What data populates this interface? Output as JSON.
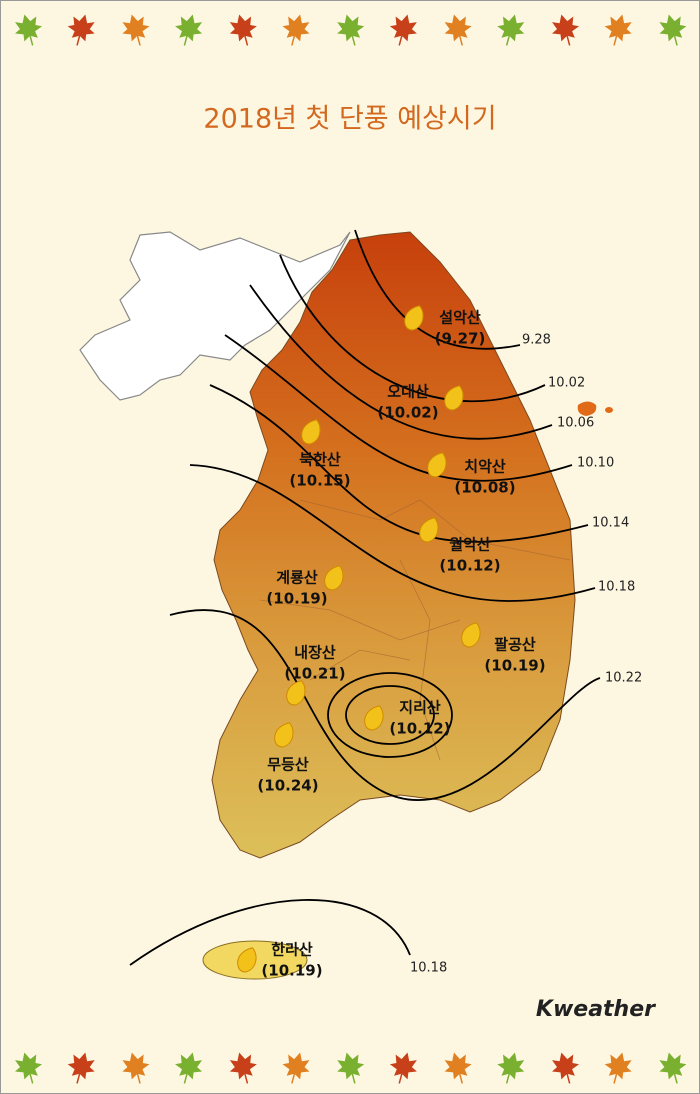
{
  "title": "2018년 첫 단풍 예상시기",
  "mountains": [
    {
      "name": "설악산",
      "date": "(9.27)"
    },
    {
      "name": "오대산",
      "date": "(10.02)"
    },
    {
      "name": "북한산",
      "date": "(10.15)"
    },
    {
      "name": "치악산",
      "date": "(10.08)"
    },
    {
      "name": "월악산",
      "date": "(10.12)"
    },
    {
      "name": "계룡산",
      "date": "(10.19)"
    },
    {
      "name": "팔공산",
      "date": "(10.19)"
    },
    {
      "name": "내장산",
      "date": "(10.21)"
    },
    {
      "name": "지리산",
      "date": "(10.12)"
    },
    {
      "name": "무등산",
      "date": "(10.24)"
    },
    {
      "name": "한라산",
      "date": "(10.19)"
    }
  ],
  "isolines": [
    "9.28",
    "10.02",
    "10.06",
    "10.10",
    "10.14",
    "10.18",
    "10.22",
    "10.18"
  ],
  "logo": "Kweather"
}
